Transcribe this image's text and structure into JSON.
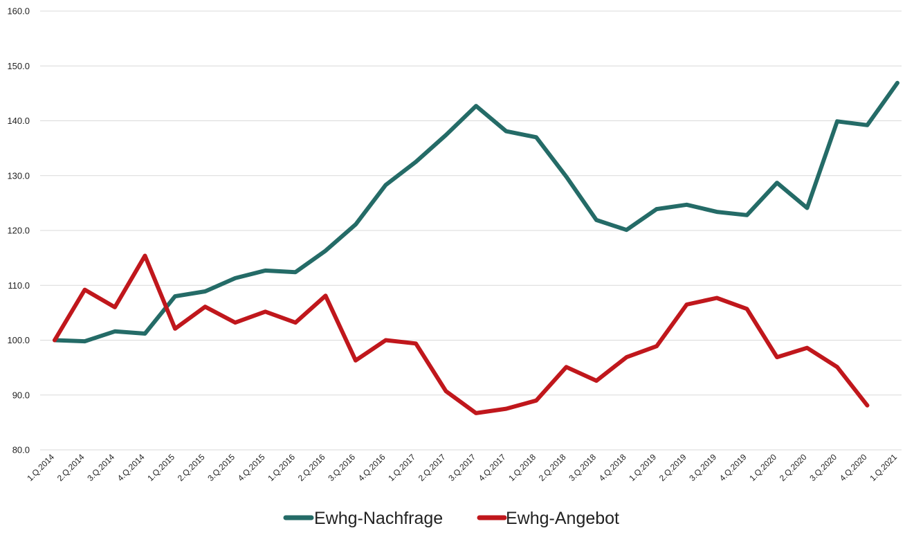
{
  "chart_data": {
    "type": "line",
    "title": "",
    "xlabel": "",
    "ylabel": "",
    "ylim": [
      80,
      160
    ],
    "yticks": [
      "80.0",
      "90.0",
      "100.0",
      "110.0",
      "120.0",
      "130.0",
      "140.0",
      "150.0",
      "160.0"
    ],
    "grid": true,
    "legend_position": "bottom",
    "categories": [
      "1.Q.2014",
      "2.Q.2014",
      "3.Q.2014",
      "4.Q.2014",
      "1.Q.2015",
      "2.Q.2015",
      "3.Q.2015",
      "4.Q.2015",
      "1.Q.2016",
      "2.Q.2016",
      "3.Q.2016",
      "4.Q.2016",
      "1.Q.2017",
      "2.Q.2017",
      "3.Q.2017",
      "4.Q.2017",
      "1.Q.2018",
      "2.Q.2018",
      "3.Q.2018",
      "4.Q.2018",
      "1.Q.2019",
      "2.Q.2019",
      "3.Q.2019",
      "4.Q.2019",
      "1.Q.2020",
      "2.Q.2020",
      "3.Q.2020",
      "4.Q.2020",
      "1.Q.2021"
    ],
    "series": [
      {
        "name": "Ewhg-Nachfrage",
        "color": "#246b67",
        "values": [
          100.0,
          99.8,
          101.6,
          101.2,
          108.0,
          108.9,
          111.3,
          112.7,
          112.4,
          116.3,
          121.1,
          128.3,
          132.5,
          137.4,
          142.7,
          138.1,
          137.0,
          129.8,
          121.9,
          120.1,
          123.9,
          124.7,
          123.4,
          122.8,
          128.7,
          124.1,
          139.9,
          139.2,
          146.9
        ]
      },
      {
        "name": "Ewhg-Angebot",
        "color": "#c0171c",
        "values": [
          100.0,
          109.2,
          106.0,
          115.4,
          102.1,
          106.1,
          103.2,
          105.2,
          103.2,
          108.1,
          96.3,
          100.0,
          99.4,
          90.7,
          86.7,
          87.5,
          89.0,
          95.1,
          92.6,
          96.9,
          98.9,
          106.5,
          107.7,
          105.7,
          96.9,
          98.6,
          95.1,
          88.1,
          null
        ]
      }
    ]
  }
}
